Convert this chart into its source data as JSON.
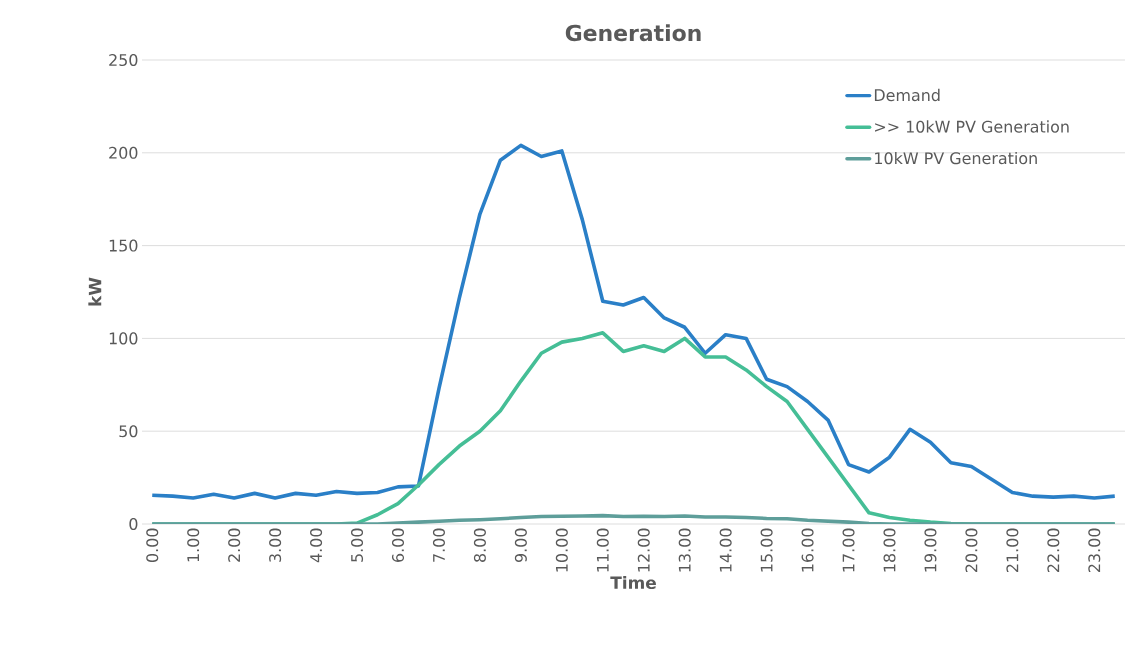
{
  "chart_data": {
    "type": "line",
    "title": "Generation",
    "xlabel": "Time",
    "ylabel": "kW",
    "categories": [
      "0.00",
      null,
      "1.00",
      null,
      "2.00",
      null,
      "3.00",
      null,
      "4.00",
      null,
      "5.00",
      null,
      "6.00",
      null,
      "7.00",
      null,
      "8.00",
      null,
      "9.00",
      null,
      "10.00",
      null,
      "11.00",
      null,
      "12.00",
      null,
      "13.00",
      null,
      "14.00",
      null,
      "15.00",
      null,
      "16.00",
      null,
      "17.00",
      null,
      "18.00",
      null,
      "19.00",
      null,
      "20.00",
      null,
      "21.00",
      null,
      "22.00",
      null,
      "23.00",
      null
    ],
    "series": [
      {
        "name": "Demand",
        "color": "#2a7fc7",
        "values": [
          15.5,
          15,
          14,
          16,
          14,
          16.5,
          14,
          16.5,
          15.5,
          17.5,
          16.5,
          17,
          20,
          20.5,
          73,
          122,
          167,
          196,
          204,
          198,
          201,
          164,
          120,
          118,
          122,
          111,
          106,
          92,
          102,
          100,
          78,
          74,
          66,
          56,
          32,
          28,
          36,
          51,
          44,
          33,
          31,
          24,
          17,
          15,
          14.5,
          15,
          14,
          15
        ]
      },
      {
        "name": ">> 10kW PV Generation",
        "color": "#45be96",
        "values": [
          0,
          0,
          0,
          0,
          0,
          0,
          0,
          0,
          0,
          0,
          0.5,
          5,
          11,
          21,
          32,
          42,
          50,
          61,
          77,
          92,
          98,
          100,
          103,
          93,
          96,
          93,
          100,
          90,
          90,
          83,
          74,
          66,
          51,
          36,
          21,
          6,
          3.5,
          2,
          1,
          0.3,
          0,
          0,
          0,
          0,
          0,
          0,
          0,
          0
        ]
      },
      {
        "name": "10kW PV Generation",
        "color": "#5e9e9a",
        "values": [
          0,
          0,
          0,
          0,
          0,
          0,
          0,
          0,
          0,
          0,
          0,
          0,
          0.5,
          1,
          1.5,
          2,
          2.3,
          2.8,
          3.5,
          4,
          4.2,
          4.3,
          4.5,
          4,
          4.1,
          4,
          4.3,
          3.8,
          3.8,
          3.5,
          3,
          2.8,
          2,
          1.5,
          1,
          0.3,
          0,
          0,
          0,
          0,
          0,
          0,
          0,
          0,
          0,
          0,
          0,
          0
        ]
      }
    ],
    "ylim": [
      0,
      250
    ],
    "yticks": [
      0,
      50,
      100,
      150,
      200,
      250
    ],
    "grid": "y",
    "legend": "top right",
    "marker": "none",
    "line_style": "solid"
  }
}
